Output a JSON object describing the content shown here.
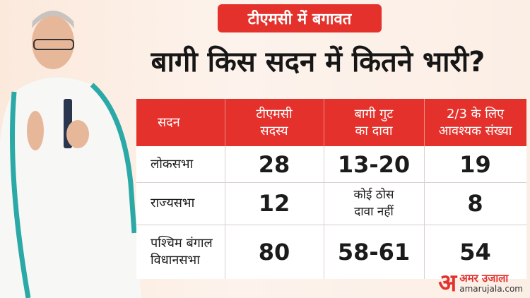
{
  "header": {
    "tag": "टीएमसी में बगावत",
    "title": "बागी किस सदन में कितने भारी?"
  },
  "table": {
    "columns": [
      [
        "सदन"
      ],
      [
        "टीएमसी",
        "सदस्य"
      ],
      [
        "बागी गुट",
        "का दावा"
      ],
      [
        "2/3 के लिए",
        "आवश्यक संख्या"
      ]
    ],
    "rows": [
      [
        [
          "लोकसभा"
        ],
        28,
        "13-20",
        19
      ],
      [
        [
          "राज्यसभा"
        ],
        12,
        [
          "कोई ठोस",
          "दावा नहीं"
        ],
        8
      ],
      [
        [
          "पश्चिम बंगाल",
          "विधानसभा"
        ],
        80,
        "58-61",
        54
      ]
    ]
  },
  "logo": {
    "mark": "अ",
    "name": "अमर उजाला",
    "site": "amarujala.com"
  }
}
